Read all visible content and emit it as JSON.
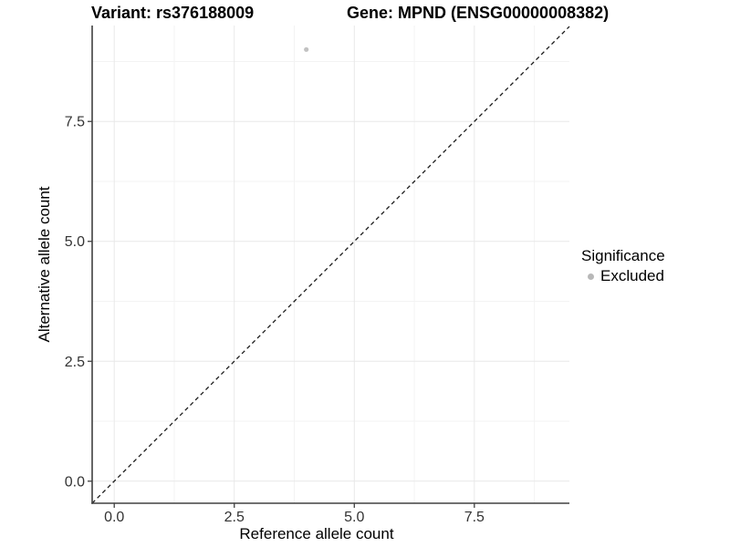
{
  "chart_data": {
    "type": "scatter",
    "titles": {
      "left": "Variant: rs376188009",
      "right": "Gene: MPND (ENSG00000008382)"
    },
    "xlabel": "Reference allele count",
    "ylabel": "Alternative allele count",
    "xlim": [
      -0.46,
      9.48
    ],
    "ylim": [
      -0.46,
      9.5
    ],
    "x_ticks": {
      "values": [
        0,
        2.5,
        5,
        7.5
      ],
      "labels": [
        "0.0",
        "2.5",
        "5.0",
        "7.5"
      ]
    },
    "y_ticks": {
      "values": [
        0,
        2.5,
        5,
        7.5
      ],
      "labels": [
        "0.0",
        "2.5",
        "5.0",
        "7.5"
      ]
    },
    "minor_ticks": [
      1.25,
      3.75,
      6.25,
      8.75
    ],
    "grid": "major+minor on white background",
    "points": [
      {
        "x": 4,
        "y": 9,
        "series": "Excluded"
      }
    ],
    "identity_line": {
      "slope": 1,
      "intercept": 0,
      "style": "dashed",
      "color": "#1a1a1a"
    },
    "legend": {
      "title": "Significance",
      "position": "right-middle",
      "items": [
        {
          "label": "Excluded",
          "color": "#b8b8b8"
        }
      ]
    },
    "colors": {
      "point": "#c2c2c2",
      "grid_major": "#e8e8e8",
      "grid_minor": "#f3f3f3",
      "axis_line": "#404040",
      "tick_mark": "#404040",
      "tick_label": "#333333",
      "axis_title": "#000000",
      "background": "#ffffff"
    }
  }
}
